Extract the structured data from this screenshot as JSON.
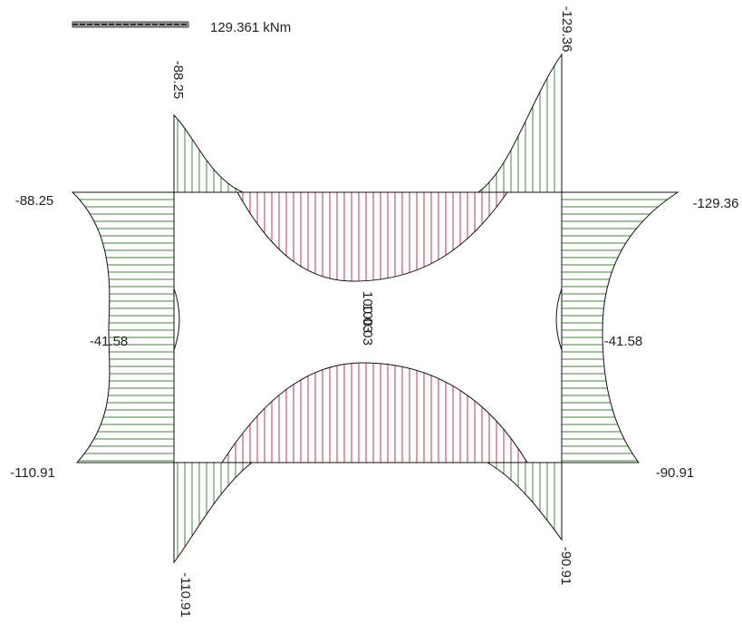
{
  "legend": {
    "label": "129.361 kNm"
  },
  "labels": [
    "-88.25",
    "-129.36",
    "-88.25",
    "-129.36",
    "-41.58",
    "-41.58",
    "100.03",
    "100.03",
    "-110.91",
    "-90.91",
    "-110.91",
    "-90.91"
  ]
}
